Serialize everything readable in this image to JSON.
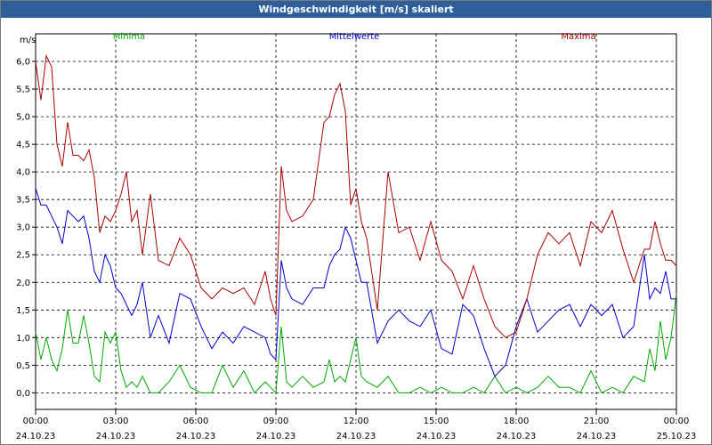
{
  "window": {
    "title": "Windgeschwindigkeit [m/s] skaliert"
  },
  "chart_data": {
    "type": "line",
    "title": "Windgeschwindigkeit [m/s] skaliert",
    "ylabel": "m/s",
    "xlabel": "",
    "ylim": [
      -0.3,
      6.5
    ],
    "grid": true,
    "yticks": [
      0.0,
      0.5,
      1.0,
      1.5,
      2.0,
      2.5,
      3.0,
      3.5,
      4.0,
      4.5,
      5.0,
      5.5,
      6.0
    ],
    "ytick_labels": [
      "0,0",
      "0,5",
      "1,0",
      "1,5",
      "2,0",
      "2,5",
      "3,0",
      "3,5",
      "4,0",
      "4,5",
      "5,0",
      "5,5",
      "6,0"
    ],
    "xlim": [
      0,
      24
    ],
    "xticks": [
      0,
      3,
      6,
      9,
      12,
      15,
      18,
      21,
      24
    ],
    "xtick_time_labels": [
      "00:00",
      "03:00",
      "06:00",
      "09:00",
      "12:00",
      "15:00",
      "18:00",
      "21:00",
      "00:00"
    ],
    "xtick_date_labels": [
      "24.10.23",
      "24.10.23",
      "24.10.23",
      "24.10.23",
      "24.10.23",
      "24.10.23",
      "24.10.23",
      "24.10.23",
      "25.10.23"
    ],
    "series": [
      {
        "name": "Minima",
        "color": "#00aa00",
        "x": [
          0,
          0.2,
          0.4,
          0.6,
          0.8,
          1.0,
          1.2,
          1.4,
          1.6,
          1.8,
          2.0,
          2.2,
          2.4,
          2.6,
          2.8,
          3.0,
          3.2,
          3.4,
          3.6,
          3.8,
          4.0,
          4.3,
          4.6,
          5.0,
          5.4,
          5.8,
          6.2,
          6.6,
          7.0,
          7.4,
          7.8,
          8.2,
          8.6,
          8.8,
          9.0,
          9.2,
          9.4,
          9.6,
          10.0,
          10.4,
          10.8,
          11.0,
          11.2,
          11.4,
          11.6,
          11.8,
          12.0,
          12.2,
          12.4,
          12.8,
          13.2,
          13.6,
          14.0,
          14.4,
          14.8,
          15.2,
          15.6,
          16.0,
          16.4,
          16.8,
          17.2,
          17.6,
          18.0,
          18.4,
          18.8,
          19.2,
          19.6,
          20.0,
          20.4,
          20.8,
          21.2,
          21.6,
          22.0,
          22.4,
          22.8,
          23.0,
          23.2,
          23.4,
          23.6,
          23.8,
          24.0
        ],
        "values": [
          1.1,
          0.6,
          1.0,
          0.6,
          0.4,
          0.8,
          1.5,
          0.9,
          0.9,
          1.4,
          0.9,
          0.3,
          0.2,
          1.1,
          0.9,
          1.1,
          0.4,
          0.1,
          0.2,
          0.1,
          0.3,
          0.0,
          0.0,
          0.2,
          0.5,
          0.1,
          0.0,
          0.0,
          0.5,
          0.1,
          0.4,
          0.0,
          0.2,
          0.1,
          0.0,
          1.2,
          0.2,
          0.1,
          0.3,
          0.1,
          0.2,
          0.6,
          0.2,
          0.3,
          0.2,
          0.6,
          1.0,
          0.3,
          0.2,
          0.1,
          0.3,
          0.0,
          0.0,
          0.1,
          0.0,
          0.1,
          0.0,
          0.0,
          0.1,
          0.0,
          0.3,
          0.0,
          0.1,
          0.0,
          0.1,
          0.3,
          0.1,
          0.1,
          0.0,
          0.4,
          0.0,
          0.1,
          0.0,
          0.3,
          0.2,
          0.8,
          0.4,
          1.3,
          0.6,
          1.0,
          1.8
        ]
      },
      {
        "name": "Mittelwerte",
        "color": "#0000cc",
        "x": [
          0,
          0.2,
          0.4,
          0.6,
          0.8,
          1.0,
          1.2,
          1.4,
          1.6,
          1.8,
          2.0,
          2.2,
          2.4,
          2.6,
          2.8,
          3.0,
          3.2,
          3.4,
          3.6,
          3.8,
          4.0,
          4.3,
          4.6,
          5.0,
          5.4,
          5.8,
          6.2,
          6.6,
          7.0,
          7.4,
          7.8,
          8.2,
          8.6,
          8.8,
          9.0,
          9.2,
          9.4,
          9.6,
          10.0,
          10.4,
          10.8,
          11.0,
          11.2,
          11.4,
          11.6,
          11.8,
          12.0,
          12.2,
          12.4,
          12.8,
          13.2,
          13.6,
          14.0,
          14.4,
          14.8,
          15.2,
          15.6,
          16.0,
          16.4,
          16.8,
          17.2,
          17.6,
          18.0,
          18.4,
          18.8,
          19.2,
          19.6,
          20.0,
          20.4,
          20.8,
          21.2,
          21.6,
          22.0,
          22.4,
          22.8,
          23.0,
          23.2,
          23.4,
          23.6,
          23.8,
          24.0
        ],
        "values": [
          3.7,
          3.4,
          3.4,
          3.2,
          3.0,
          2.7,
          3.3,
          3.2,
          3.1,
          3.2,
          2.8,
          2.2,
          2.0,
          2.5,
          2.3,
          1.9,
          1.8,
          1.6,
          1.4,
          1.6,
          2.0,
          1.0,
          1.4,
          0.9,
          1.8,
          1.7,
          1.2,
          0.8,
          1.1,
          0.9,
          1.2,
          1.1,
          1.0,
          0.7,
          0.6,
          2.4,
          1.9,
          1.7,
          1.6,
          1.9,
          1.9,
          2.3,
          2.5,
          2.6,
          3.0,
          2.8,
          2.4,
          2.0,
          2.0,
          0.9,
          1.3,
          1.5,
          1.3,
          1.2,
          1.5,
          0.8,
          0.7,
          1.6,
          1.4,
          0.8,
          0.3,
          0.5,
          1.2,
          1.7,
          1.1,
          1.3,
          1.5,
          1.6,
          1.2,
          1.6,
          1.4,
          1.6,
          1.0,
          1.2,
          2.5,
          1.7,
          1.9,
          1.8,
          2.2,
          1.7,
          1.7
        ]
      },
      {
        "name": "Maxima",
        "color": "#aa0000",
        "x": [
          0,
          0.2,
          0.4,
          0.6,
          0.8,
          1.0,
          1.2,
          1.4,
          1.6,
          1.8,
          2.0,
          2.2,
          2.4,
          2.6,
          2.8,
          3.0,
          3.2,
          3.4,
          3.6,
          3.8,
          4.0,
          4.3,
          4.6,
          5.0,
          5.4,
          5.8,
          6.2,
          6.6,
          7.0,
          7.4,
          7.8,
          8.2,
          8.6,
          8.8,
          9.0,
          9.2,
          9.4,
          9.6,
          10.0,
          10.4,
          10.8,
          11.0,
          11.2,
          11.4,
          11.6,
          11.8,
          12.0,
          12.2,
          12.4,
          12.8,
          13.2,
          13.6,
          14.0,
          14.4,
          14.8,
          15.2,
          15.6,
          16.0,
          16.4,
          16.8,
          17.2,
          17.6,
          18.0,
          18.4,
          18.8,
          19.2,
          19.6,
          20.0,
          20.4,
          20.8,
          21.2,
          21.6,
          22.0,
          22.4,
          22.8,
          23.0,
          23.2,
          23.4,
          23.6,
          23.8,
          24.0
        ],
        "values": [
          6.0,
          5.3,
          6.1,
          5.9,
          4.5,
          4.1,
          4.9,
          4.3,
          4.3,
          4.2,
          4.4,
          3.9,
          2.9,
          3.2,
          3.1,
          3.3,
          3.6,
          4.0,
          3.1,
          3.3,
          2.5,
          3.6,
          2.4,
          2.3,
          2.8,
          2.5,
          1.9,
          1.7,
          1.9,
          1.8,
          1.9,
          1.6,
          2.2,
          1.7,
          1.4,
          4.1,
          3.3,
          3.1,
          3.2,
          3.5,
          4.9,
          5.0,
          5.4,
          5.6,
          5.1,
          3.4,
          3.7,
          3.1,
          2.8,
          1.5,
          4.0,
          2.9,
          3.0,
          2.4,
          3.1,
          2.4,
          2.2,
          1.7,
          2.3,
          1.7,
          1.2,
          1.0,
          1.1,
          1.7,
          2.5,
          2.9,
          2.7,
          2.9,
          2.3,
          3.1,
          2.9,
          3.3,
          2.6,
          2.0,
          2.6,
          2.6,
          3.1,
          2.7,
          2.4,
          2.4,
          2.3
        ]
      }
    ]
  }
}
